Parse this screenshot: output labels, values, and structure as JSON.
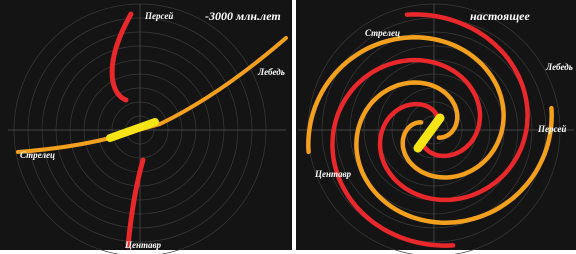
{
  "panels": [
    {
      "title": "-3000 млн.лет",
      "labels": [
        "Персей",
        "Лебедь",
        "Стрелец",
        "Центавр"
      ]
    },
    {
      "title": "настоящее",
      "labels": [
        "Стрелец",
        "Лебедь",
        "Персей",
        "Центавр"
      ]
    }
  ]
}
